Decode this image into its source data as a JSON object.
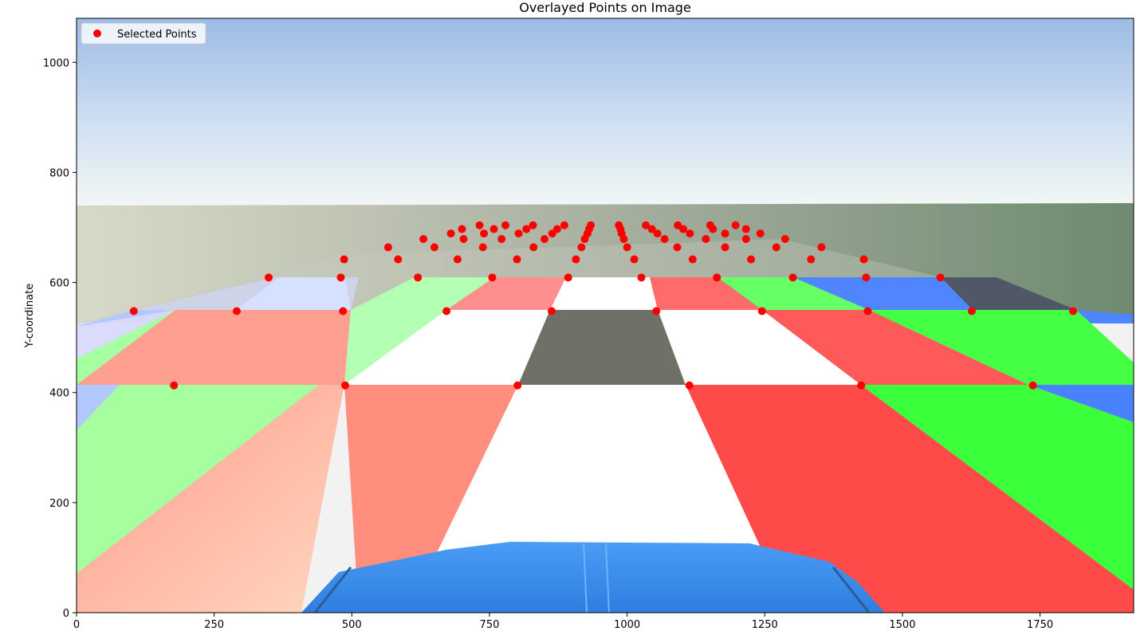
{
  "chart_data": {
    "type": "scatter",
    "title": "Overlayed Points on Image",
    "xlabel": "",
    "ylabel": "Y-coordinate",
    "xlim": [
      0,
      1920
    ],
    "ylim": [
      0,
      1080
    ],
    "x_ticks": [
      0,
      250,
      500,
      750,
      1000,
      1250,
      1500,
      1750
    ],
    "y_ticks": [
      0,
      200,
      400,
      600,
      800,
      1000
    ],
    "grid": false,
    "legend": {
      "position": "top-left",
      "entries": [
        "Selected Points"
      ]
    },
    "background": "road-checkerboard-image",
    "series": [
      {
        "name": "Selected Points",
        "color": "#ff0000",
        "marker": "circle",
        "points": [
          [
            177,
            413
          ],
          [
            488,
            413
          ],
          [
            801,
            413
          ],
          [
            1113,
            413
          ],
          [
            1425,
            413
          ],
          [
            1737,
            413
          ],
          [
            104,
            548
          ],
          [
            291,
            548
          ],
          [
            484,
            548
          ],
          [
            672,
            548
          ],
          [
            863,
            548
          ],
          [
            1053,
            548
          ],
          [
            1245,
            548
          ],
          [
            1437,
            548
          ],
          [
            1626,
            548
          ],
          [
            1810,
            548
          ],
          [
            349,
            609
          ],
          [
            480,
            609
          ],
          [
            620,
            609
          ],
          [
            755,
            609
          ],
          [
            893,
            609
          ],
          [
            1026,
            609
          ],
          [
            1163,
            609
          ],
          [
            1301,
            609
          ],
          [
            1434,
            609
          ],
          [
            1569,
            609
          ],
          [
            486,
            642
          ],
          [
            584,
            642
          ],
          [
            692,
            642
          ],
          [
            800,
            642
          ],
          [
            907,
            642
          ],
          [
            1013,
            642
          ],
          [
            1119,
            642
          ],
          [
            1225,
            642
          ],
          [
            1334,
            642
          ],
          [
            1430,
            642
          ],
          [
            566,
            664
          ],
          [
            650,
            664
          ],
          [
            738,
            664
          ],
          [
            830,
            664
          ],
          [
            917,
            664
          ],
          [
            1000,
            664
          ],
          [
            1091,
            664
          ],
          [
            1178,
            664
          ],
          [
            1271,
            664
          ],
          [
            1353,
            664
          ],
          [
            630,
            679
          ],
          [
            703,
            679
          ],
          [
            772,
            679
          ],
          [
            850,
            679
          ],
          [
            923,
            679
          ],
          [
            994,
            679
          ],
          [
            1068,
            679
          ],
          [
            1143,
            679
          ],
          [
            1216,
            679
          ],
          [
            1287,
            679
          ],
          [
            680,
            689
          ],
          [
            740,
            689
          ],
          [
            803,
            689
          ],
          [
            864,
            689
          ],
          [
            928,
            689
          ],
          [
            990,
            689
          ],
          [
            1055,
            689
          ],
          [
            1114,
            689
          ],
          [
            1178,
            689
          ],
          [
            1242,
            689
          ],
          [
            700,
            697
          ],
          [
            758,
            697
          ],
          [
            817,
            697
          ],
          [
            873,
            697
          ],
          [
            931,
            697
          ],
          [
            988,
            697
          ],
          [
            1045,
            697
          ],
          [
            1102,
            697
          ],
          [
            1156,
            697
          ],
          [
            1216,
            697
          ],
          [
            732,
            704
          ],
          [
            779,
            704
          ],
          [
            829,
            704
          ],
          [
            886,
            704
          ],
          [
            934,
            704
          ],
          [
            985,
            704
          ],
          [
            1034,
            704
          ],
          [
            1092,
            704
          ],
          [
            1151,
            704
          ],
          [
            1197,
            704
          ]
        ]
      }
    ]
  }
}
